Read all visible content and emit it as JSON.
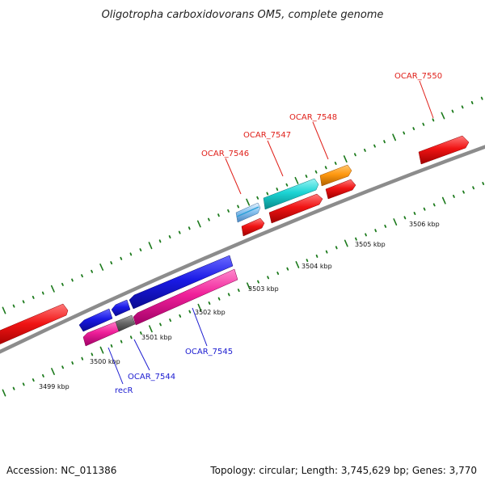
{
  "title": "Oligotropha carboxidovorans OM5, complete genome",
  "footer": {
    "accession": "Accession: NC_011386",
    "topology": "Topology: circular; Length: 3,745,629 bp; Genes: 3,770"
  },
  "colors": {
    "backbone": "#8c8c8c",
    "tick": "#1c7a1c",
    "upper_label": "#e0201a",
    "lower_label": "#1a1ad0"
  },
  "bp_scale": [
    "3499 kbp",
    "3500 kbp",
    "3501 kbp",
    "3502 kbp",
    "3503 kbp",
    "3504 kbp",
    "3505 kbp",
    "3506 kbp"
  ],
  "gene_labels": [
    {
      "text": "OCAR_7550",
      "strand": "forward"
    },
    {
      "text": "OCAR_7548",
      "strand": "forward"
    },
    {
      "text": "OCAR_7547",
      "strand": "forward"
    },
    {
      "text": "OCAR_7546",
      "strand": "forward"
    },
    {
      "text": "OCAR_7545",
      "strand": "reverse"
    },
    {
      "text": "OCAR_7544",
      "strand": "reverse"
    },
    {
      "text": "recR",
      "strand": "reverse"
    }
  ]
}
